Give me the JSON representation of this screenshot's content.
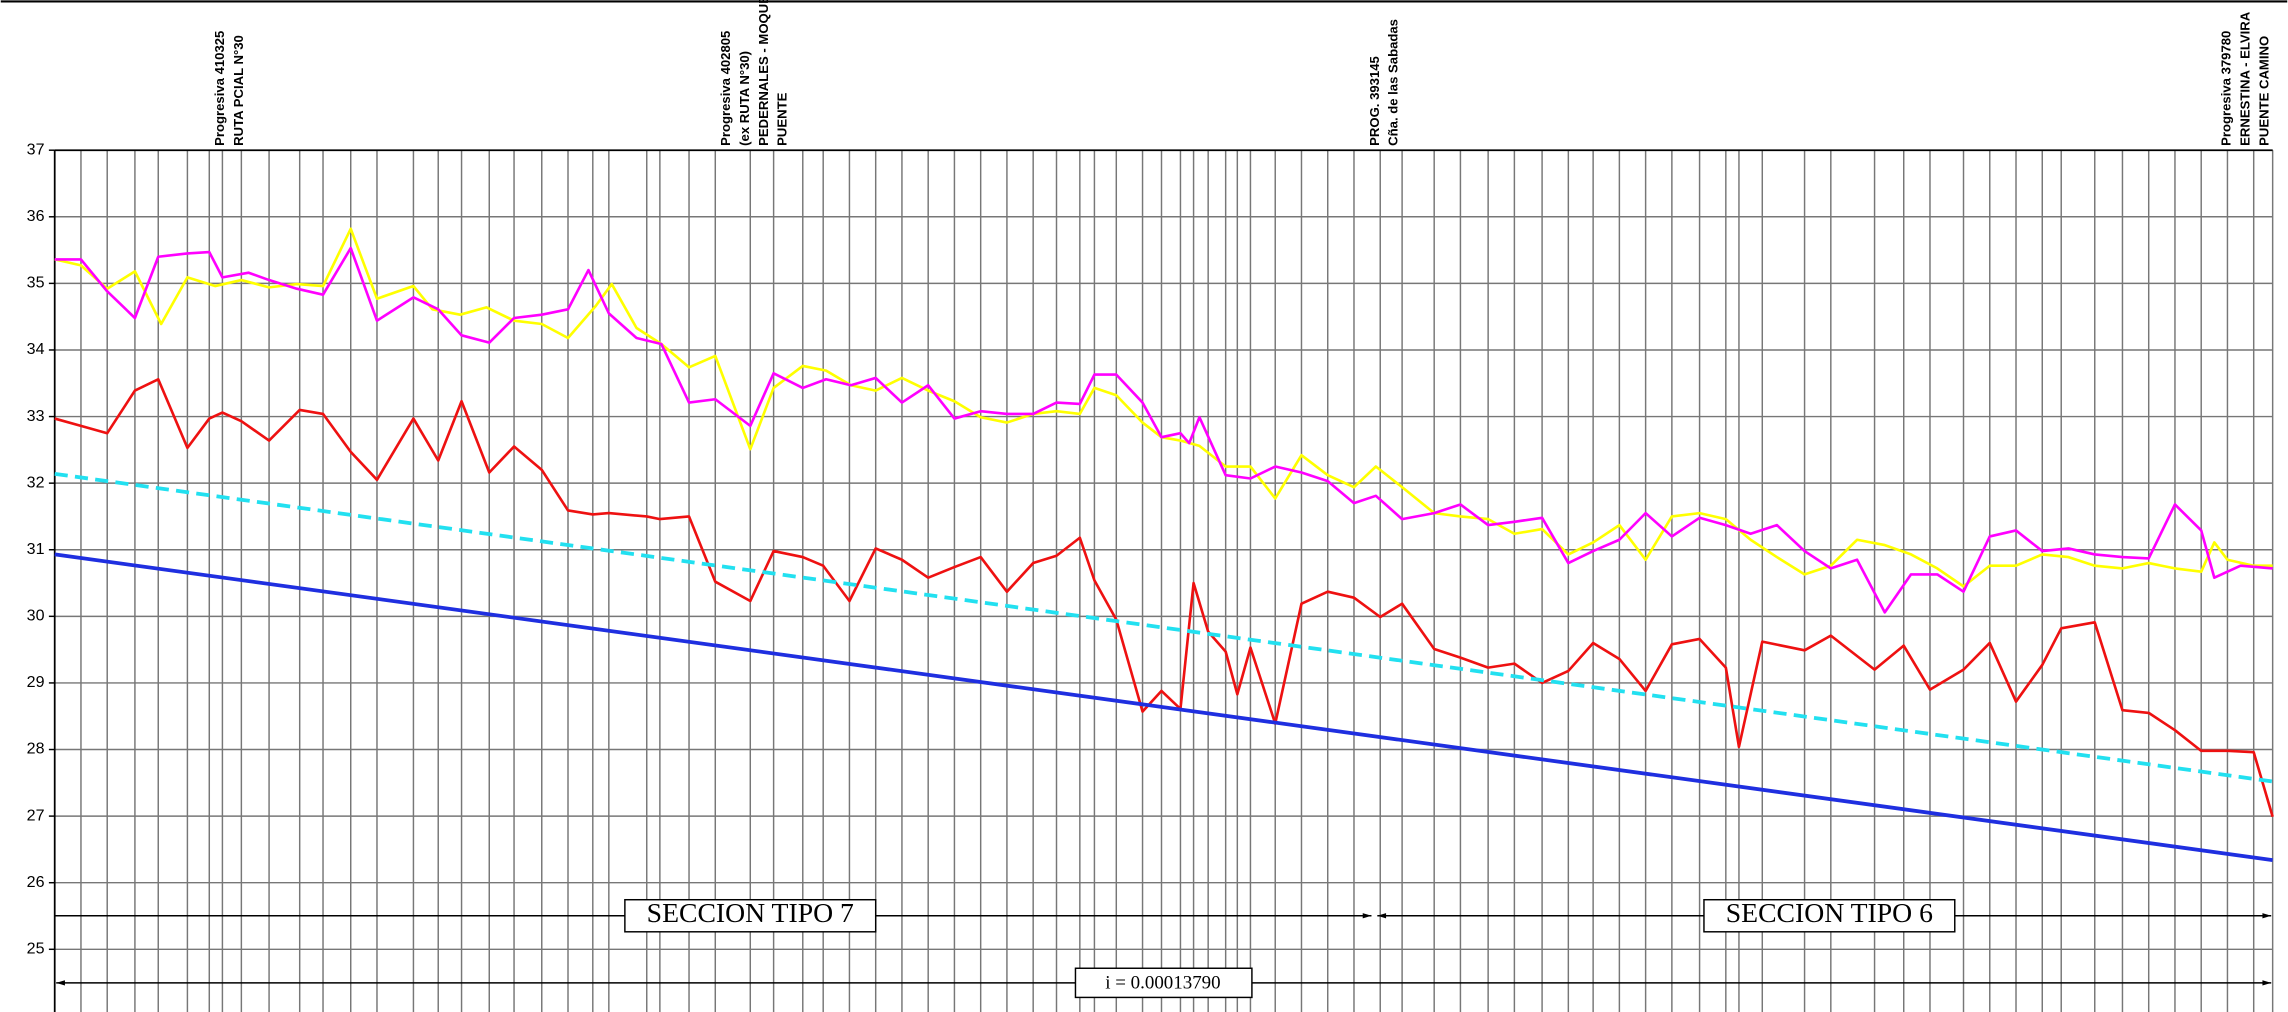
{
  "chart_data": {
    "type": "line",
    "ylim": [
      25,
      37
    ],
    "yticks": [
      25,
      26,
      27,
      28,
      29,
      30,
      31,
      32,
      33,
      34,
      35,
      36,
      37
    ],
    "xlim": [
      0,
      1521
    ],
    "grid": true,
    "annotations": [
      "Progresiva 410325",
      "RUTA PCIAL N°30",
      "Progresiva 402805",
      "(ex RUTA N°30)",
      "PEDERNALES - MOQUEHUA",
      "PUENTE",
      "PROG. 393145",
      "Cña. de las Sabadas",
      "Progresiva 379780",
      "ERNESTINA - ELVIRA",
      "PUENTE CAMINO"
    ],
    "sections": [
      "SECCION TIPO 7",
      "SECCION TIPO 6"
    ],
    "slope_label": "i = 0.00013790",
    "series": [
      {
        "color": "#ffff00",
        "x": [
          0,
          18,
          36,
          55,
          73,
          91,
          110,
          128,
          147,
          166,
          184,
          203,
          221,
          246,
          259,
          278,
          296,
          315,
          334,
          352,
          371,
          382,
          399,
          416,
          435,
          453,
          477,
          493,
          513,
          529,
          546,
          563,
          581,
          599,
          617,
          635,
          653,
          671,
          687,
          703,
          713,
          728,
          746,
          759,
          772,
          785,
          803,
          820,
          837,
          855,
          873,
          891,
          906,
          924,
          946,
          964,
          983,
          1001,
          1020,
          1038,
          1055,
          1073,
          1091,
          1109,
          1128,
          1146,
          1163,
          1181,
          1200,
          1218,
          1236,
          1255,
          1273,
          1291,
          1309,
          1327,
          1345,
          1363,
          1381,
          1399,
          1418,
          1436,
          1454,
          1472,
          1481,
          1490,
          1508,
          1521
        ],
        "values": [
          35.36,
          35.27,
          34.92,
          35.18,
          34.39,
          35.09,
          34.96,
          35.05,
          34.94,
          34.99,
          34.96,
          35.82,
          34.77,
          34.96,
          34.61,
          34.53,
          34.64,
          34.44,
          34.39,
          34.18,
          34.66,
          34.99,
          34.33,
          34.09,
          33.74,
          33.91,
          32.51,
          33.43,
          33.76,
          33.69,
          33.47,
          33.39,
          33.58,
          33.39,
          33.23,
          32.99,
          32.91,
          33.04,
          33.08,
          33.04,
          33.43,
          33.32,
          32.91,
          32.69,
          32.64,
          32.56,
          32.25,
          32.25,
          31.77,
          32.42,
          32.12,
          31.94,
          32.25,
          31.94,
          31.55,
          31.5,
          31.46,
          31.24,
          31.31,
          30.93,
          31.11,
          31.37,
          30.85,
          31.5,
          31.55,
          31.46,
          31.15,
          30.89,
          30.63,
          30.76,
          31.15,
          31.07,
          30.93,
          30.72,
          30.45,
          30.76,
          30.76,
          30.93,
          30.89,
          30.76,
          30.72,
          30.8,
          30.72,
          30.67,
          31.11,
          30.85,
          30.76,
          30.76
        ]
      },
      {
        "color": "#ff00ff",
        "x": [
          0,
          18,
          36,
          55,
          71,
          91,
          106,
          115,
          133,
          147,
          166,
          184,
          203,
          221,
          246,
          263,
          279,
          298,
          315,
          334,
          352,
          366,
          380,
          399,
          416,
          435,
          453,
          477,
          493,
          513,
          529,
          546,
          563,
          581,
          599,
          617,
          635,
          653,
          671,
          687,
          703,
          713,
          728,
          746,
          759,
          772,
          778,
          785,
          803,
          820,
          837,
          855,
          873,
          891,
          906,
          924,
          946,
          964,
          983,
          1001,
          1020,
          1038,
          1055,
          1073,
          1091,
          1109,
          1128,
          1146,
          1163,
          1181,
          1200,
          1218,
          1236,
          1255,
          1273,
          1291,
          1309,
          1327,
          1345,
          1363,
          1381,
          1399,
          1418,
          1436,
          1454,
          1472,
          1481,
          1499,
          1521
        ],
        "values": [
          35.36,
          35.36,
          34.88,
          34.48,
          35.4,
          35.45,
          35.47,
          35.09,
          35.16,
          35.05,
          34.92,
          34.83,
          35.53,
          34.44,
          34.79,
          34.61,
          34.22,
          34.11,
          34.48,
          34.53,
          34.61,
          35.2,
          34.55,
          34.18,
          34.09,
          33.21,
          33.26,
          32.86,
          33.65,
          33.43,
          33.56,
          33.47,
          33.58,
          33.21,
          33.47,
          32.97,
          33.08,
          33.04,
          33.04,
          33.21,
          33.19,
          33.63,
          33.63,
          33.21,
          32.69,
          32.75,
          32.6,
          32.99,
          32.12,
          32.07,
          32.25,
          32.16,
          32.03,
          31.7,
          31.81,
          31.46,
          31.55,
          31.68,
          31.37,
          31.42,
          31.48,
          30.8,
          30.98,
          31.15,
          31.55,
          31.2,
          31.48,
          31.37,
          31.24,
          31.37,
          30.98,
          30.72,
          30.85,
          30.06,
          30.63,
          30.63,
          30.37,
          31.2,
          31.29,
          30.98,
          31.02,
          30.93,
          30.89,
          30.87,
          31.68,
          31.29,
          30.58,
          30.76,
          30.72
        ]
      },
      {
        "color": "#ee1111",
        "x": [
          0,
          18,
          36,
          55,
          71,
          91,
          106,
          115,
          128,
          147,
          168,
          184,
          203,
          221,
          246,
          263,
          279,
          298,
          315,
          334,
          352,
          369,
          380,
          406,
          415,
          435,
          453,
          477,
          493,
          513,
          527,
          545,
          563,
          581,
          599,
          617,
          635,
          653,
          671,
          687,
          703,
          713,
          728,
          746,
          759,
          772,
          781,
          791,
          803,
          811,
          820,
          837,
          855,
          873,
          891,
          909,
          924,
          946,
          964,
          983,
          1001,
          1020,
          1038,
          1055,
          1073,
          1091,
          1109,
          1128,
          1146,
          1155,
          1171,
          1200,
          1218,
          1248,
          1268,
          1286,
          1309,
          1327,
          1345,
          1363,
          1376,
          1399,
          1418,
          1436,
          1454,
          1472,
          1490,
          1508,
          1521
        ],
        "values": [
          32.97,
          32.86,
          32.75,
          33.39,
          33.56,
          32.53,
          32.97,
          33.06,
          32.93,
          32.64,
          33.1,
          33.04,
          32.47,
          32.05,
          32.97,
          32.34,
          33.23,
          32.16,
          32.55,
          32.2,
          31.59,
          31.53,
          31.55,
          31.5,
          31.46,
          31.5,
          30.52,
          30.23,
          30.98,
          30.89,
          30.76,
          30.23,
          31.02,
          30.85,
          30.58,
          30.74,
          30.89,
          30.37,
          30.8,
          30.91,
          31.18,
          30.54,
          29.95,
          28.57,
          28.88,
          28.61,
          30.5,
          29.77,
          29.47,
          28.83,
          29.53,
          28.39,
          30.19,
          30.37,
          30.28,
          29.99,
          30.19,
          29.51,
          29.38,
          29.23,
          29.29,
          29.0,
          29.18,
          29.6,
          29.36,
          28.88,
          29.58,
          29.66,
          29.23,
          28.04,
          29.62,
          29.49,
          29.71,
          29.2,
          29.56,
          28.9,
          29.2,
          29.6,
          28.72,
          29.27,
          29.82,
          29.91,
          28.59,
          28.55,
          28.29,
          27.98,
          27.98,
          27.96,
          26.99
        ]
      },
      {
        "color": "#22e0f0",
        "dash": true,
        "x": [
          0,
          1521
        ],
        "values": [
          32.14,
          27.52
        ]
      },
      {
        "color": "#1f2fe0",
        "x": [
          0,
          1521
        ],
        "values": [
          30.93,
          26.34
        ]
      }
    ]
  }
}
